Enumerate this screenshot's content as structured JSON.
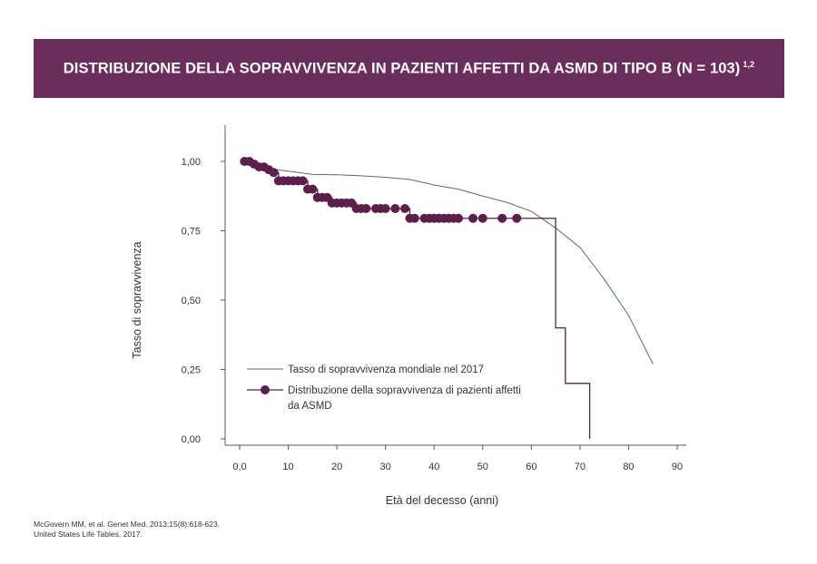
{
  "header": {
    "title": "DISTRIBUZIONE DELLA SOPRAVVIVENZA IN PAZIENTI AFFETTI DA ASMD DI TIPO B (N = 103)",
    "superscript": "1,2"
  },
  "colors": {
    "banner": "#6b2d5c",
    "asmd": "#5c1e4b",
    "world": "#557065",
    "axis": "#555555"
  },
  "footnotes": [
    "McGovern MM, et al. Genet Med. 2013;15(8):618-623.",
    "United States Life Tables, 2017."
  ],
  "chart_data": {
    "type": "line",
    "xlabel": "Età del decesso (anni)",
    "ylabel": "Tasso di sopravvivenza",
    "xlim": [
      0,
      90
    ],
    "ylim": [
      0,
      1.1
    ],
    "x_ticks": [
      0,
      10,
      20,
      30,
      40,
      50,
      60,
      70,
      80,
      90
    ],
    "x_tick_labels": [
      "0,0",
      "10",
      "20",
      "30",
      "40",
      "50",
      "60",
      "70",
      "80",
      "90"
    ],
    "y_ticks": [
      0,
      0.25,
      0.5,
      0.75,
      1
    ],
    "y_tick_labels": [
      "0,00",
      "0,25",
      "0,50",
      "0,75",
      "1,00"
    ],
    "grid": false,
    "legend_position": "bottom-left",
    "series": [
      {
        "name": "Tasso di sopravvivenza mondiale nel 2017",
        "style": "line",
        "points": [
          [
            1,
            0.99
          ],
          [
            5,
            0.975
          ],
          [
            10,
            0.965
          ],
          [
            15,
            0.953
          ],
          [
            20,
            0.952
          ],
          [
            25,
            0.948
          ],
          [
            30,
            0.943
          ],
          [
            35,
            0.935
          ],
          [
            40,
            0.915
          ],
          [
            45,
            0.9
          ],
          [
            50,
            0.875
          ],
          [
            55,
            0.852
          ],
          [
            60,
            0.82
          ],
          [
            65,
            0.76
          ],
          [
            70,
            0.69
          ],
          [
            75,
            0.575
          ],
          [
            80,
            0.445
          ],
          [
            85,
            0.27
          ]
        ]
      },
      {
        "name": "Distribuzione della sopravvivenza di pazienti affetti da ASMD",
        "style": "step-with-markers",
        "points": [
          [
            1,
            1.0
          ],
          [
            2,
            1.0
          ],
          [
            3,
            0.99
          ],
          [
            4,
            0.98
          ],
          [
            5,
            0.98
          ],
          [
            6,
            0.97
          ],
          [
            7,
            0.96
          ],
          [
            8,
            0.93
          ],
          [
            9,
            0.93
          ],
          [
            10,
            0.93
          ],
          [
            11,
            0.93
          ],
          [
            12,
            0.93
          ],
          [
            13,
            0.93
          ],
          [
            14,
            0.9
          ],
          [
            15,
            0.9
          ],
          [
            16,
            0.87
          ],
          [
            17,
            0.87
          ],
          [
            18,
            0.87
          ],
          [
            19,
            0.85
          ],
          [
            20,
            0.85
          ],
          [
            21,
            0.85
          ],
          [
            22,
            0.85
          ],
          [
            23,
            0.85
          ],
          [
            24,
            0.83
          ],
          [
            25,
            0.83
          ],
          [
            26,
            0.83
          ],
          [
            28,
            0.83
          ],
          [
            29,
            0.83
          ],
          [
            30,
            0.83
          ],
          [
            32,
            0.83
          ],
          [
            34,
            0.83
          ],
          [
            35,
            0.795
          ],
          [
            36,
            0.795
          ],
          [
            38,
            0.795
          ],
          [
            39,
            0.795
          ],
          [
            40,
            0.795
          ],
          [
            41,
            0.795
          ],
          [
            42,
            0.795
          ],
          [
            43,
            0.795
          ],
          [
            44,
            0.795
          ],
          [
            45,
            0.795
          ],
          [
            48,
            0.795
          ],
          [
            50,
            0.795
          ],
          [
            54,
            0.795
          ],
          [
            57,
            0.795
          ]
        ],
        "step_tail": [
          [
            57,
            0.795
          ],
          [
            65,
            0.795
          ],
          [
            65,
            0.4
          ],
          [
            67,
            0.4
          ],
          [
            67,
            0.2
          ],
          [
            72,
            0.2
          ],
          [
            72,
            0.0
          ]
        ]
      }
    ]
  }
}
